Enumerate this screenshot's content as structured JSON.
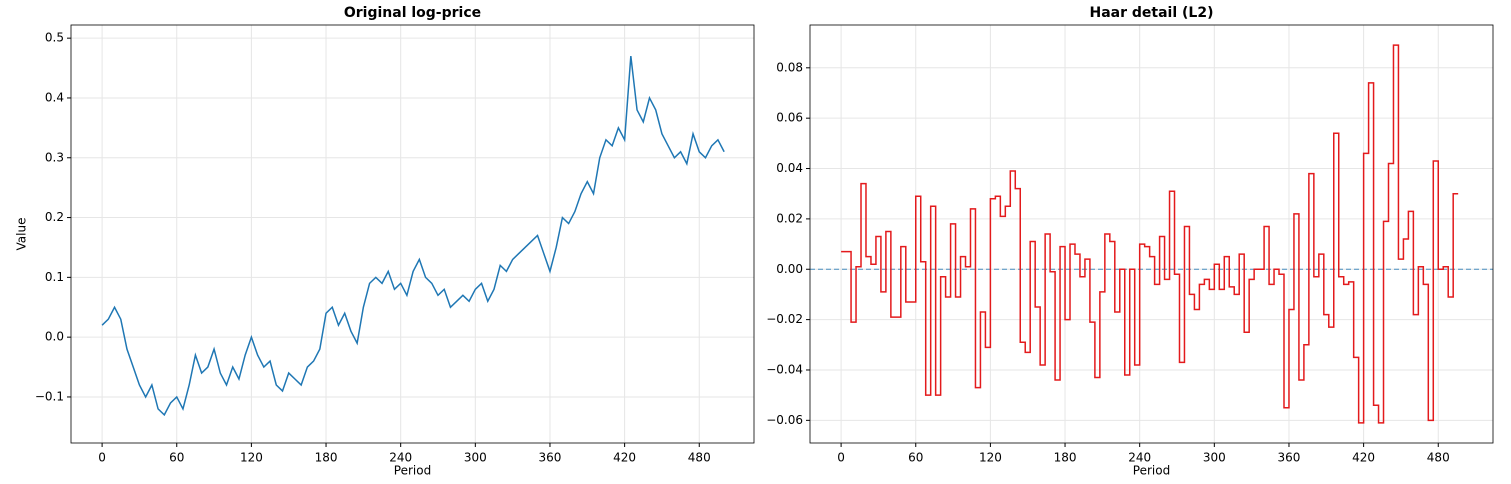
{
  "chart_data": [
    {
      "type": "line",
      "title": "Original log-price",
      "xlabel": "Period",
      "ylabel": "Value",
      "color": "#1f77b4",
      "grid": true,
      "x": [
        0,
        5,
        10,
        15,
        20,
        25,
        30,
        35,
        40,
        45,
        50,
        55,
        60,
        65,
        70,
        75,
        80,
        85,
        90,
        95,
        100,
        105,
        110,
        115,
        120,
        125,
        130,
        135,
        140,
        145,
        150,
        155,
        160,
        165,
        170,
        175,
        180,
        185,
        190,
        195,
        200,
        205,
        210,
        215,
        220,
        225,
        230,
        235,
        240,
        245,
        250,
        255,
        260,
        265,
        270,
        275,
        280,
        285,
        290,
        295,
        300,
        305,
        310,
        315,
        320,
        325,
        330,
        335,
        340,
        345,
        350,
        355,
        360,
        365,
        370,
        375,
        380,
        385,
        390,
        395,
        400,
        405,
        410,
        415,
        420,
        425,
        430,
        435,
        440,
        445,
        450,
        455,
        460,
        465,
        470,
        475,
        480,
        485,
        490,
        495,
        500
      ],
      "values": [
        0.02,
        0.03,
        0.05,
        0.03,
        -0.02,
        -0.05,
        -0.08,
        -0.1,
        -0.08,
        -0.12,
        -0.13,
        -0.11,
        -0.1,
        -0.12,
        -0.08,
        -0.03,
        -0.06,
        -0.05,
        -0.02,
        -0.06,
        -0.08,
        -0.05,
        -0.07,
        -0.03,
        0.0,
        -0.03,
        -0.05,
        -0.04,
        -0.08,
        -0.09,
        -0.06,
        -0.07,
        -0.08,
        -0.05,
        -0.04,
        -0.02,
        0.04,
        0.05,
        0.02,
        0.04,
        0.01,
        -0.01,
        0.05,
        0.09,
        0.1,
        0.09,
        0.11,
        0.08,
        0.09,
        0.07,
        0.11,
        0.13,
        0.1,
        0.09,
        0.07,
        0.08,
        0.05,
        0.06,
        0.07,
        0.06,
        0.08,
        0.09,
        0.06,
        0.08,
        0.12,
        0.11,
        0.13,
        0.14,
        0.15,
        0.16,
        0.17,
        0.14,
        0.11,
        0.15,
        0.2,
        0.19,
        0.21,
        0.24,
        0.26,
        0.24,
        0.3,
        0.33,
        0.32,
        0.35,
        0.33,
        0.47,
        0.38,
        0.36,
        0.4,
        0.38,
        0.34,
        0.32,
        0.3,
        0.31,
        0.29,
        0.34,
        0.31,
        0.3,
        0.32,
        0.33,
        0.31
      ],
      "xlim": [
        -25,
        524
      ],
      "ylim": [
        -0.177,
        0.522
      ],
      "xticks": [
        0,
        60,
        120,
        180,
        240,
        300,
        360,
        420,
        480
      ],
      "yticks": [
        {
          "value": -0.1,
          "label": "−0.1"
        },
        {
          "value": 0,
          "label": "0.0"
        },
        0.1,
        0.2,
        0.3,
        0.4,
        0.5
      ]
    },
    {
      "type": "step",
      "title": "Haar detail (L2)",
      "xlabel": "Period",
      "color": "#e31a1c",
      "grid": true,
      "hline": 0,
      "hline_color": "#1f77b4",
      "x": [
        0,
        4,
        8,
        12,
        16,
        20,
        24,
        28,
        32,
        36,
        40,
        44,
        48,
        52,
        56,
        60,
        64,
        68,
        72,
        76,
        80,
        84,
        88,
        92,
        96,
        100,
        104,
        108,
        112,
        116,
        120,
        124,
        128,
        132,
        136,
        140,
        144,
        148,
        152,
        156,
        160,
        164,
        168,
        172,
        176,
        180,
        184,
        188,
        192,
        196,
        200,
        204,
        208,
        212,
        216,
        220,
        224,
        228,
        232,
        236,
        240,
        244,
        248,
        252,
        256,
        260,
        264,
        268,
        272,
        276,
        280,
        284,
        288,
        292,
        296,
        300,
        304,
        308,
        312,
        316,
        320,
        324,
        328,
        332,
        336,
        340,
        344,
        348,
        352,
        356,
        360,
        364,
        368,
        372,
        376,
        380,
        384,
        388,
        392,
        396,
        400,
        404,
        408,
        412,
        416,
        420,
        424,
        428,
        432,
        436,
        440,
        444,
        448,
        452,
        456,
        460,
        464,
        468,
        472,
        476,
        480,
        484,
        488,
        492,
        496
      ],
      "values": [
        0.007,
        0.007,
        -0.021,
        0.001,
        0.034,
        0.005,
        0.002,
        0.013,
        -0.009,
        0.015,
        -0.019,
        -0.019,
        0.009,
        -0.013,
        -0.013,
        0.029,
        0.003,
        -0.05,
        0.025,
        -0.05,
        -0.003,
        -0.011,
        0.018,
        -0.011,
        0.005,
        0.001,
        0.024,
        -0.047,
        -0.017,
        -0.031,
        0.028,
        0.029,
        0.021,
        0.025,
        0.039,
        0.032,
        -0.029,
        -0.033,
        0.011,
        -0.015,
        -0.038,
        0.014,
        -0.001,
        -0.044,
        0.009,
        -0.02,
        0.01,
        0.006,
        -0.003,
        0.004,
        -0.021,
        -0.043,
        -0.009,
        0.014,
        0.011,
        -0.017,
        0.0,
        -0.042,
        0.0,
        -0.038,
        0.01,
        0.009,
        0.005,
        -0.006,
        0.013,
        -0.004,
        0.031,
        -0.002,
        -0.037,
        0.017,
        -0.01,
        -0.016,
        -0.006,
        -0.004,
        -0.008,
        0.002,
        -0.008,
        0.005,
        -0.007,
        -0.01,
        0.006,
        -0.025,
        -0.004,
        0.0,
        0.0,
        0.017,
        -0.006,
        0.0,
        -0.002,
        -0.055,
        -0.016,
        0.022,
        -0.044,
        -0.03,
        0.038,
        -0.003,
        0.006,
        -0.018,
        -0.023,
        0.054,
        -0.003,
        -0.006,
        -0.005,
        -0.035,
        -0.061,
        0.046,
        0.074,
        -0.054,
        -0.061,
        0.019,
        0.042,
        0.089,
        0.004,
        0.012,
        0.023,
        -0.018,
        0.001,
        -0.006,
        -0.06,
        0.043,
        0.0,
        0.001,
        -0.011,
        0.03,
        0.03
      ],
      "xlim": [
        -25,
        524
      ],
      "ylim": [
        -0.069,
        0.097
      ],
      "xticks": [
        0,
        60,
        120,
        180,
        240,
        300,
        360,
        420,
        480
      ],
      "yticks": [
        {
          "value": -0.06,
          "label": "−0.06"
        },
        {
          "value": -0.04,
          "label": "−0.04"
        },
        {
          "value": -0.02,
          "label": "−0.02"
        },
        {
          "value": 0,
          "label": "0.00"
        },
        0.02,
        0.04,
        0.06,
        0.08
      ]
    }
  ]
}
